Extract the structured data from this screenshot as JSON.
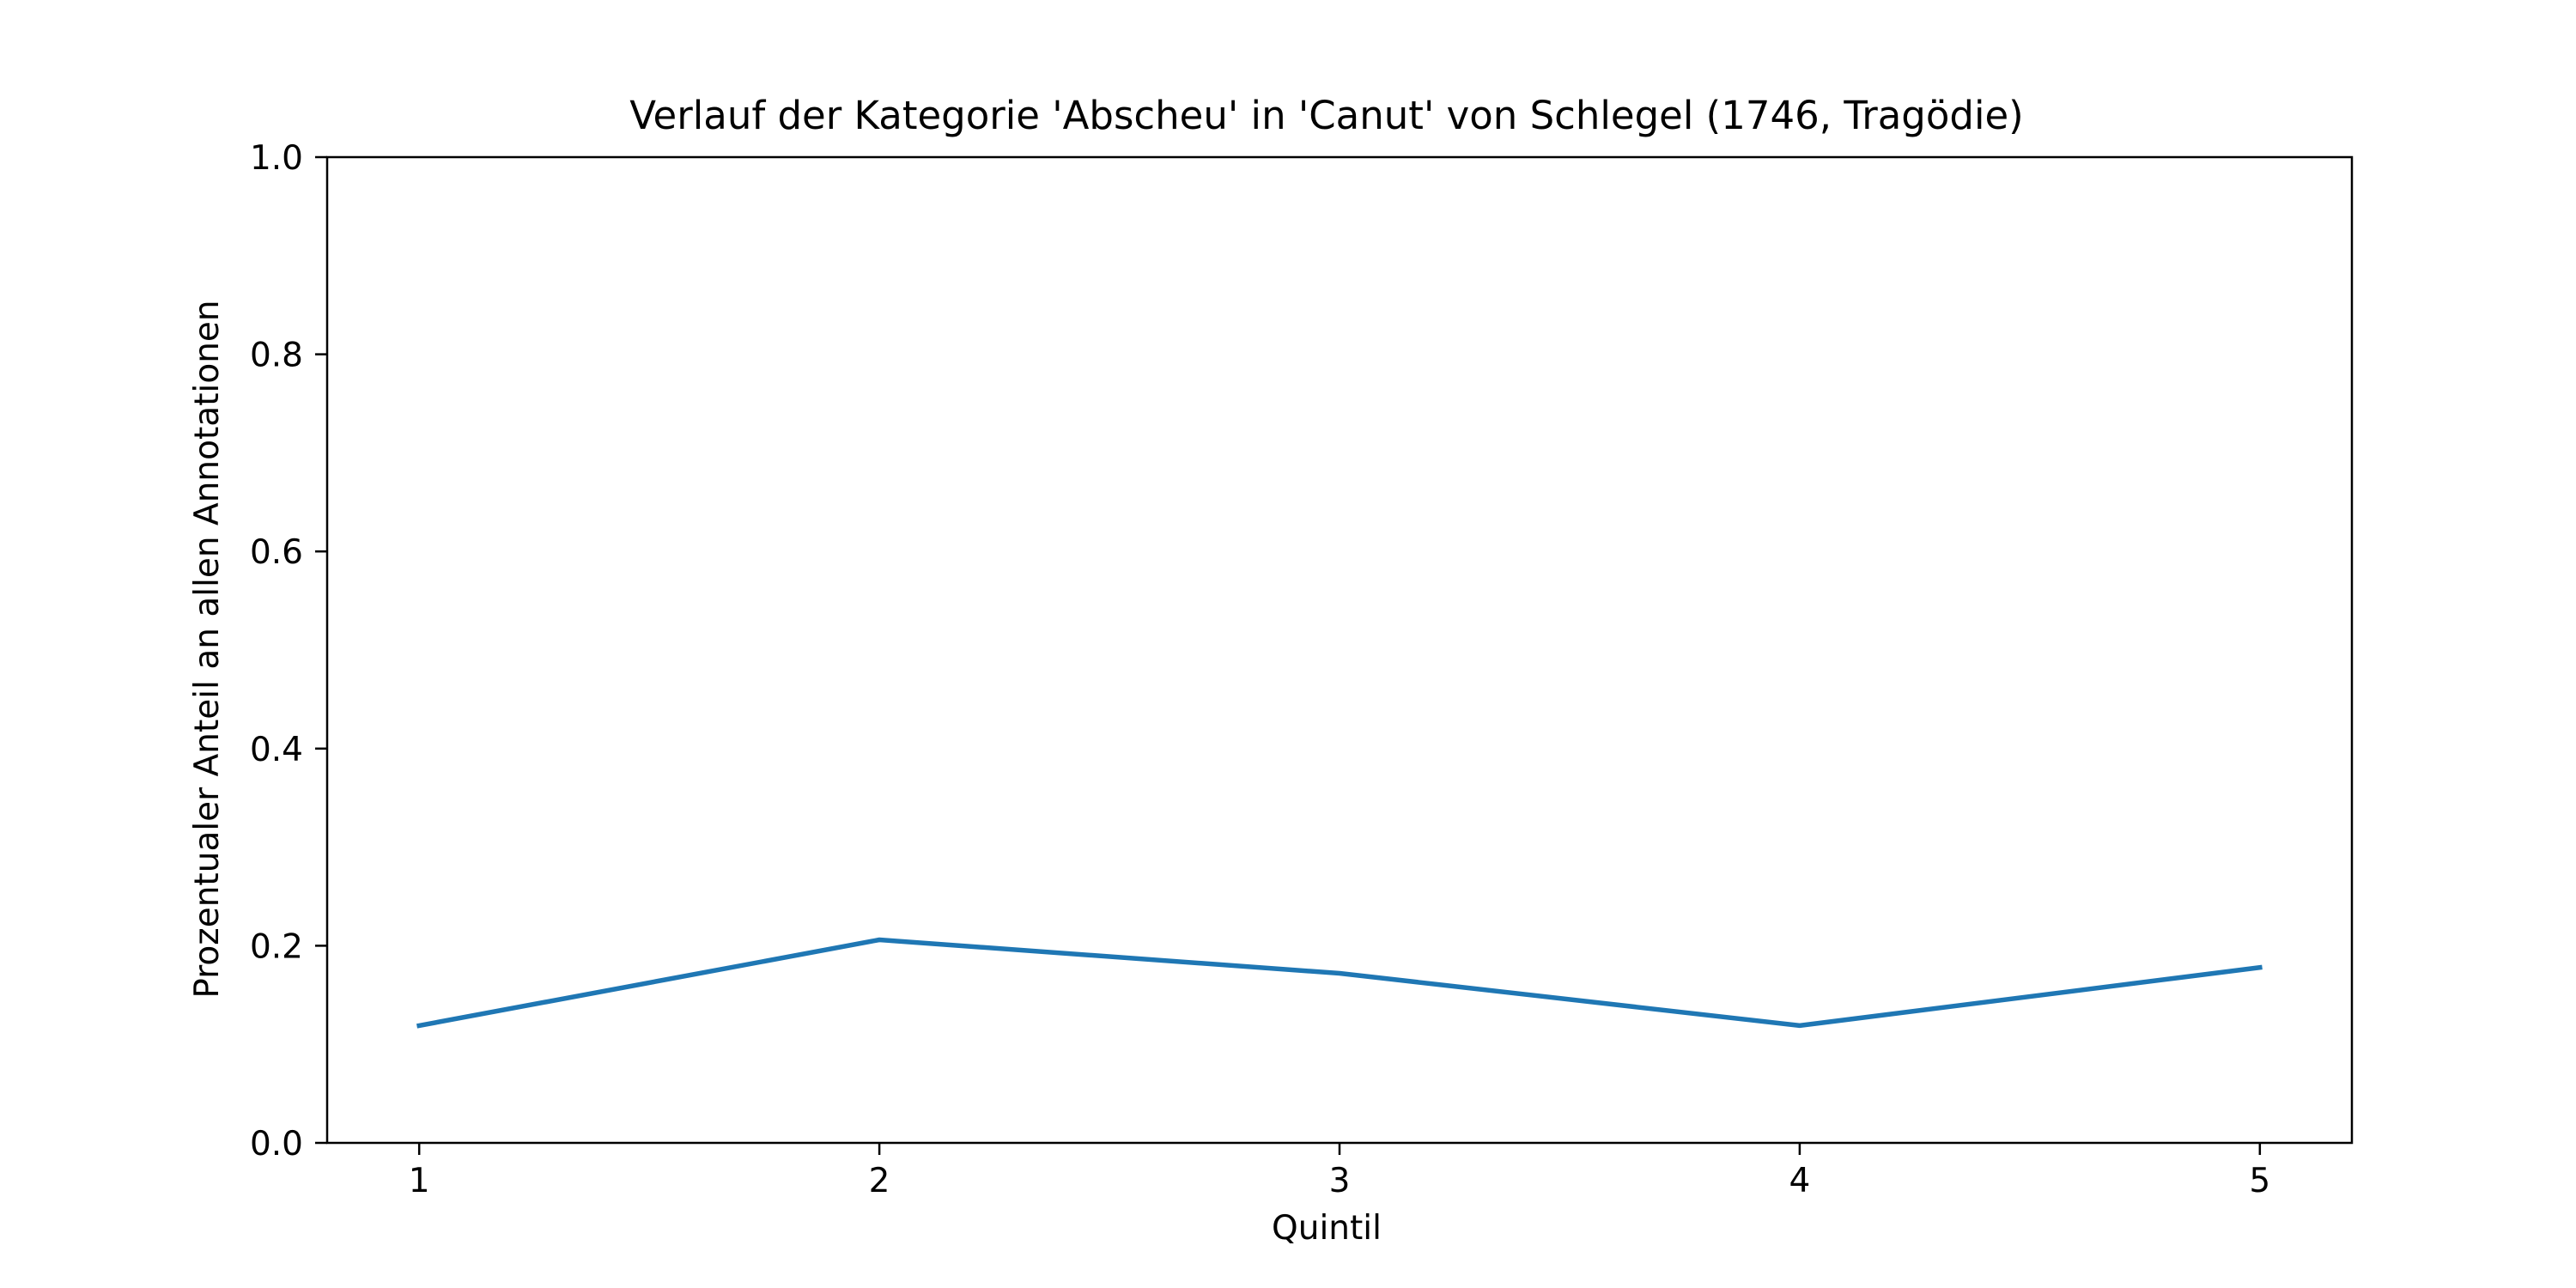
{
  "chart_data": {
    "type": "line",
    "title": "Verlauf der Kategorie 'Abscheu' in 'Canut' von Schlegel (1746, Tragödie)",
    "xlabel": "Quintil",
    "ylabel": "Prozentualer Anteil an allen Annotationen",
    "x": [
      1,
      2,
      3,
      4,
      5
    ],
    "x_ticks": [
      "1",
      "2",
      "3",
      "4",
      "5"
    ],
    "xlim": [
      0.8,
      5.2
    ],
    "ylim": [
      0.0,
      1.0
    ],
    "y_ticks": [
      "0.0",
      "0.2",
      "0.4",
      "0.6",
      "0.8",
      "1.0"
    ],
    "series": [
      {
        "values": [
          0.119,
          0.206,
          0.172,
          0.119,
          0.178
        ],
        "color": "#1f77b4"
      }
    ],
    "grid": false,
    "legend": "none"
  }
}
